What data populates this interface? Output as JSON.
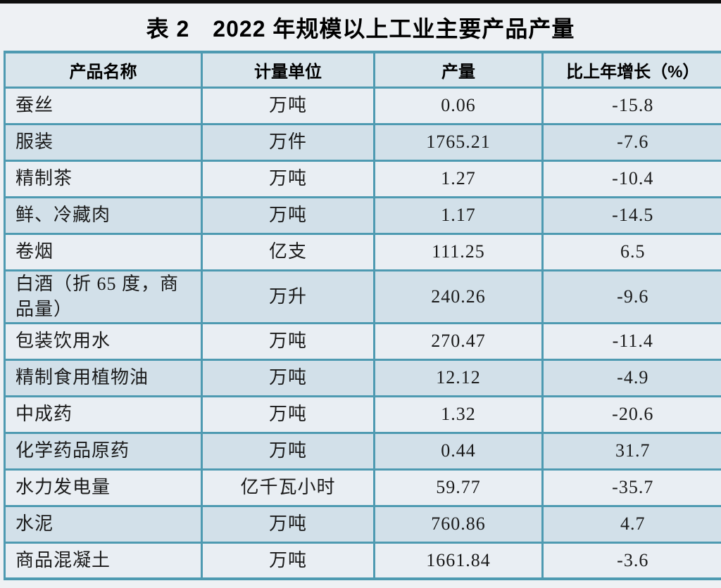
{
  "page": {
    "background": "#eef1f4",
    "top_rule_color": "#0f0f0f"
  },
  "title": "表 2　2022 年规模以上工业主要产品产量",
  "table": {
    "colors": {
      "border": "#4e9ab1",
      "header_bg": "#d9e5ec",
      "row_light": "#e9eef3",
      "row_dark": "#d2e0e9"
    },
    "columns": [
      "产品名称",
      "计量单位",
      "产量",
      "比上年增长（%）"
    ],
    "rows": [
      {
        "name": "蚕丝",
        "unit": "万吨",
        "output": "0.06",
        "growth": "-15.8"
      },
      {
        "name": "服装",
        "unit": "万件",
        "output": "1765.21",
        "growth": "-7.6"
      },
      {
        "name": "精制茶",
        "unit": "万吨",
        "output": "1.27",
        "growth": "-10.4"
      },
      {
        "name": "鲜、冷藏肉",
        "unit": "万吨",
        "output": "1.17",
        "growth": "-14.5"
      },
      {
        "name": "卷烟",
        "unit": "亿支",
        "output": "111.25",
        "growth": "6.5"
      },
      {
        "name": "白酒（折 65 度，商品量）",
        "unit": "万升",
        "output": "240.26",
        "growth": "-9.6"
      },
      {
        "name": "包装饮用水",
        "unit": "万吨",
        "output": "270.47",
        "growth": "-11.4"
      },
      {
        "name": "精制食用植物油",
        "unit": "万吨",
        "output": "12.12",
        "growth": "-4.9"
      },
      {
        "name": "中成药",
        "unit": "万吨",
        "output": "1.32",
        "growth": "-20.6"
      },
      {
        "name": "化学药品原药",
        "unit": "万吨",
        "output": "0.44",
        "growth": "31.7"
      },
      {
        "name": "水力发电量",
        "unit": "亿千瓦小时",
        "output": "59.77",
        "growth": "-35.7"
      },
      {
        "name": "水泥",
        "unit": "万吨",
        "output": "760.86",
        "growth": "4.7"
      },
      {
        "name": "商品混凝土",
        "unit": "万吨",
        "output": "1661.84",
        "growth": "-3.6"
      }
    ]
  }
}
